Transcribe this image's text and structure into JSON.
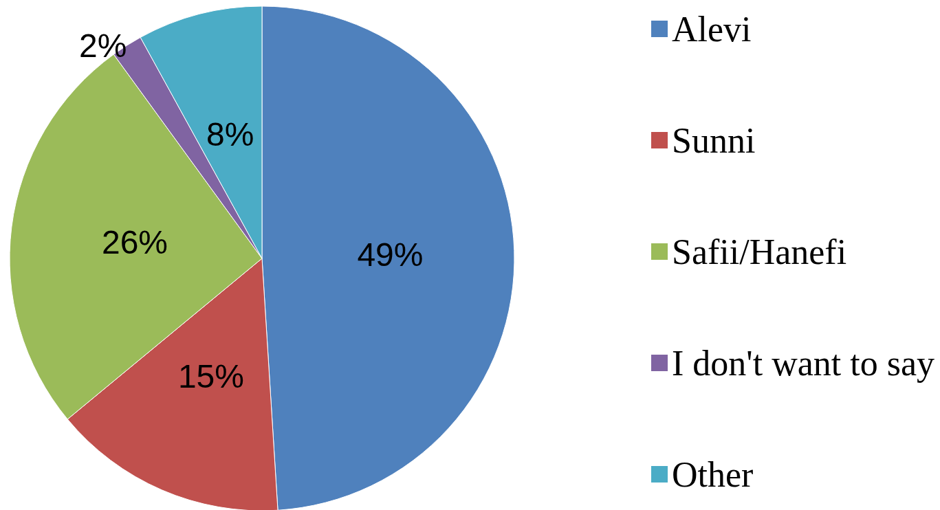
{
  "chart_data": {
    "type": "pie",
    "categories": [
      "Alevi",
      "Sunni",
      "Safii/Hanefi",
      "I don't want to say",
      "Other"
    ],
    "values": [
      49,
      15,
      26,
      2,
      8
    ],
    "colors": [
      "#4f81bd",
      "#c0504d",
      "#9bbb59",
      "#8064a2",
      "#4bacc6"
    ],
    "value_labels": [
      "49%",
      "15%",
      "26%",
      "2%",
      "8%"
    ],
    "legend": "right"
  }
}
